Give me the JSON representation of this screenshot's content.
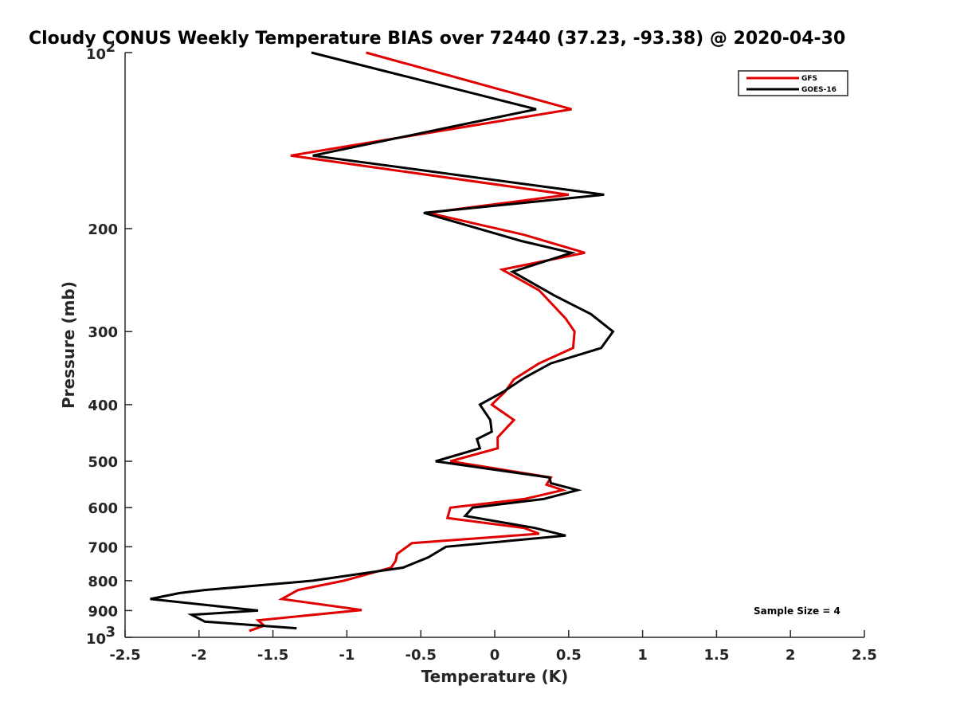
{
  "chart_data": {
    "type": "line",
    "title": "Cloudy CONUS Weekly Temperature BIAS over 72440 (37.23, -93.38) @ 2020-04-30",
    "xlabel": "Temperature (K)",
    "ylabel": "Pressure (mb)",
    "xlim": [
      -2.5,
      2.5
    ],
    "ylim": [
      100,
      1000
    ],
    "y_scale": "log",
    "y_reversed": true,
    "grid": false,
    "legend_position": "top-right",
    "x_ticks": [
      -2.5,
      -2,
      -1.5,
      -1,
      -0.5,
      0,
      0.5,
      1,
      1.5,
      2,
      2.5
    ],
    "x_tick_labels": [
      "-2.5",
      "-2",
      "-1.5",
      "-1",
      "-0.5",
      "0",
      "0.5",
      "1",
      "1.5",
      "2",
      "2.5"
    ],
    "y_ticks": [
      {
        "value": 100,
        "base": "10",
        "exp": "2"
      },
      {
        "value": 200,
        "label": "200"
      },
      {
        "value": 300,
        "label": "300"
      },
      {
        "value": 400,
        "label": "400"
      },
      {
        "value": 500,
        "label": "500"
      },
      {
        "value": 600,
        "label": "600"
      },
      {
        "value": 700,
        "label": "700"
      },
      {
        "value": 800,
        "label": "800"
      },
      {
        "value": 900,
        "label": "900"
      },
      {
        "value": 1000,
        "base": "10",
        "exp": "3"
      }
    ],
    "annotation": "Sample Size = 4",
    "series": [
      {
        "name": "GFS",
        "color": "#e00000",
        "points": [
          [
            -0.87,
            100
          ],
          [
            0.52,
            125
          ],
          [
            -1.38,
            150
          ],
          [
            0.5,
            175
          ],
          [
            -0.45,
            188
          ],
          [
            0.2,
            205
          ],
          [
            0.61,
            220
          ],
          [
            0.05,
            235
          ],
          [
            0.3,
            255
          ],
          [
            0.48,
            285
          ],
          [
            0.54,
            300
          ],
          [
            0.53,
            320
          ],
          [
            0.3,
            340
          ],
          [
            0.13,
            362
          ],
          [
            0.07,
            380
          ],
          [
            -0.02,
            400
          ],
          [
            0.13,
            425
          ],
          [
            0.02,
            455
          ],
          [
            0.02,
            475
          ],
          [
            -0.3,
            500
          ],
          [
            0.38,
            533
          ],
          [
            0.35,
            548
          ],
          [
            0.46,
            560
          ],
          [
            0.2,
            580
          ],
          [
            -0.3,
            600
          ],
          [
            -0.32,
            625
          ],
          [
            0.2,
            650
          ],
          [
            0.3,
            665
          ],
          [
            -0.56,
            690
          ],
          [
            -0.66,
            720
          ],
          [
            -0.67,
            740
          ],
          [
            -0.7,
            760
          ],
          [
            -1.02,
            800
          ],
          [
            -1.33,
            830
          ],
          [
            -1.44,
            860
          ],
          [
            -0.9,
            898
          ],
          [
            -1.6,
            935
          ],
          [
            -1.56,
            955
          ],
          [
            -1.66,
            975
          ]
        ]
      },
      {
        "name": "GOES-16",
        "color": "#000000",
        "points": [
          [
            -1.24,
            100
          ],
          [
            0.28,
            125
          ],
          [
            -1.23,
            150
          ],
          [
            0.74,
            175
          ],
          [
            -0.48,
            188
          ],
          [
            0.18,
            210
          ],
          [
            0.52,
            220
          ],
          [
            0.12,
            237
          ],
          [
            0.4,
            260
          ],
          [
            0.65,
            280
          ],
          [
            0.8,
            300
          ],
          [
            0.72,
            320
          ],
          [
            0.38,
            340
          ],
          [
            0.2,
            360
          ],
          [
            0.06,
            380
          ],
          [
            -0.1,
            400
          ],
          [
            -0.03,
            425
          ],
          [
            -0.02,
            445
          ],
          [
            -0.12,
            458
          ],
          [
            -0.1,
            475
          ],
          [
            -0.4,
            500
          ],
          [
            0.37,
            533
          ],
          [
            0.38,
            545
          ],
          [
            0.56,
            560
          ],
          [
            0.33,
            580
          ],
          [
            -0.15,
            600
          ],
          [
            -0.2,
            620
          ],
          [
            0.27,
            650
          ],
          [
            0.48,
            670
          ],
          [
            -0.33,
            700
          ],
          [
            -0.45,
            730
          ],
          [
            -0.62,
            760
          ],
          [
            -1.23,
            800
          ],
          [
            -1.96,
            830
          ],
          [
            -2.13,
            840
          ],
          [
            -2.33,
            860
          ],
          [
            -1.6,
            900
          ],
          [
            -2.05,
            915
          ],
          [
            -1.96,
            940
          ],
          [
            -1.34,
            965
          ]
        ]
      }
    ]
  }
}
